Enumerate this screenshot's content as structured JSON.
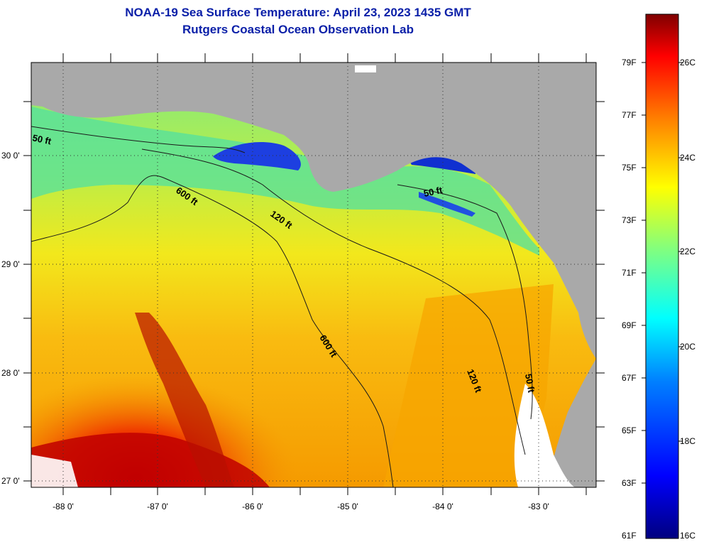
{
  "title": "NOAA-19 Sea Surface Temperature:  April 23, 2023 1435 GMT",
  "subtitle": "Rutgers Coastal Ocean Observation Lab",
  "map": {
    "lon_labels": [
      "-88 0'",
      "-87 0'",
      "-86 0'",
      "-85 0'",
      "-84 0'",
      "-83 0'"
    ],
    "lat_labels": [
      "30 0'",
      "29 0'",
      "28 0'",
      "27 0'"
    ],
    "contours": [
      {
        "label": "50 ft",
        "color": "#000000"
      },
      {
        "label": "600 ft",
        "color": "#000000"
      },
      {
        "label": "120 ft",
        "color": "#000000"
      },
      {
        "label": "50 ft",
        "color": "#000000"
      },
      {
        "label": "600 ft",
        "color": "#000000"
      },
      {
        "label": "120 ft",
        "color": "#000000"
      },
      {
        "label": "50 ft",
        "color": "#000000"
      }
    ],
    "colors": {
      "land": "#a9a9a9",
      "no_data": "#ffffff",
      "contour": "#1a1a1a"
    }
  },
  "colorbar": {
    "fahrenheit_labels": [
      "79F",
      "77F",
      "75F",
      "73F",
      "71F",
      "69F",
      "67F",
      "65F",
      "63F",
      "61F"
    ],
    "celsius_labels": [
      "26C",
      "24C",
      "22C",
      "20C",
      "18C",
      "16C"
    ],
    "stops": [
      "#00007f",
      "#0000ff",
      "#0080ff",
      "#00ffff",
      "#80ff80",
      "#ffff00",
      "#ff8000",
      "#ff0000",
      "#7f0000"
    ]
  }
}
